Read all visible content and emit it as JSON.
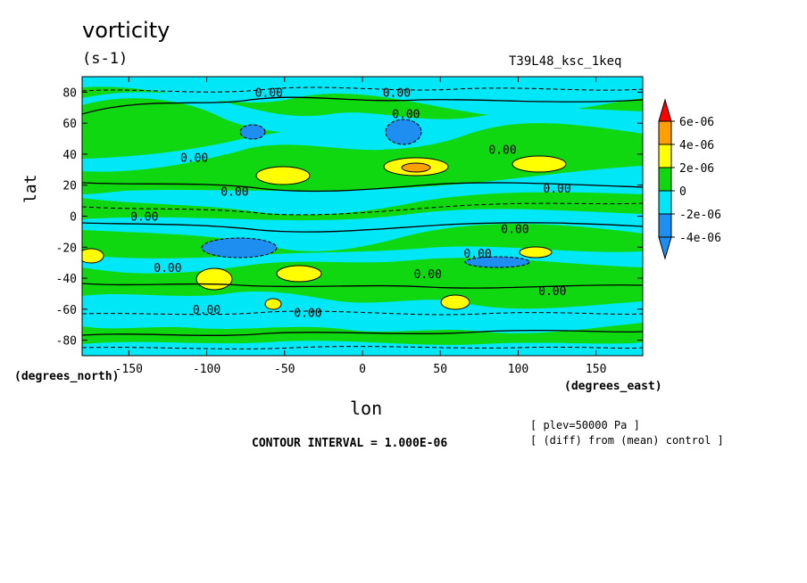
{
  "header": {
    "title": "vorticity",
    "units": "(s-1)",
    "run_name": "T39L48_ksc_1keq"
  },
  "axes": {
    "ylabel": "lat",
    "ylabel_units": "(degrees_north)",
    "xlabel": "lon",
    "xlabel_units": "(degrees_east)"
  },
  "footer": {
    "contour_interval": "CONTOUR INTERVAL = 1.000E-06",
    "note_plev": "[ plev=50000 Pa ]",
    "note_diff": "[ (diff) from (mean) control ]"
  },
  "colors": {
    "lt_neg4": "#1e8ef0",
    "neg4_neg2": "#1e8ef0",
    "neg2_0": "#00e8f8",
    "0_2": "#10d810",
    "2_4": "#ffff00",
    "4_6": "#ffa000",
    "gt_6": "#ff0000"
  },
  "chart_data": {
    "type": "heatmap",
    "title": "vorticity",
    "xlabel": "lon",
    "ylabel": "lat",
    "xlim": [
      -180,
      180
    ],
    "ylim": [
      -90,
      90
    ],
    "x_ticks": [
      -150,
      -100,
      -50,
      0,
      50,
      100,
      150
    ],
    "y_ticks": [
      80,
      60,
      40,
      20,
      0,
      -20,
      -40,
      -60,
      -80
    ],
    "contour_label": "0.00",
    "colorbar": {
      "levels": [
        "6e-06",
        "4e-06",
        "2e-06",
        "0",
        "-2e-06",
        "-4e-06"
      ],
      "bands": [
        {
          "range": "< -4e-06",
          "color": "#1e8ef0"
        },
        {
          "range": "-4e-06 to -2e-06",
          "color": "#1e8ef0"
        },
        {
          "range": "-2e-06 to 0",
          "color": "#00e8f8"
        },
        {
          "range": "0 to 2e-06",
          "color": "#10d810"
        },
        {
          "range": "2e-06 to 4e-06",
          "color": "#ffff00"
        },
        {
          "range": "4e-06 to 6e-06",
          "color": "#ffa000"
        },
        {
          "range": "> 6e-06",
          "color": "#ff0000"
        }
      ]
    },
    "features": [
      {
        "lon": -55,
        "lat": 25,
        "value": "2e-06 to 4e-06"
      },
      {
        "lon": 35,
        "lat": 30,
        "value": "4e-06 to 6e-06"
      },
      {
        "lon": 110,
        "lat": 32,
        "value": "2e-06 to 4e-06"
      },
      {
        "lon": 25,
        "lat": 52,
        "value": "< -4e-06"
      },
      {
        "lon": -70,
        "lat": 58,
        "value": "-4e-06 to -2e-06"
      },
      {
        "lon": -80,
        "lat": -22,
        "value": "-4e-06 to -2e-06"
      },
      {
        "lon": 80,
        "lat": -30,
        "value": "-4e-06 to -2e-06"
      },
      {
        "lon": -75,
        "lat": -40,
        "value": "2e-06 to 4e-06"
      },
      {
        "lon": -40,
        "lat": -35,
        "value": "2e-06 to 4e-06"
      },
      {
        "lon": 60,
        "lat": -55,
        "value": "2e-06 to 4e-06"
      },
      {
        "lon": 110,
        "lat": -25,
        "value": "2e-06 to 4e-06"
      },
      {
        "lon": -170,
        "lat": -25,
        "value": "2e-06 to 4e-06"
      },
      {
        "lon": -60,
        "lat": -57,
        "value": "2e-06 to 4e-06"
      }
    ],
    "contour_labels": [
      {
        "lon": -60,
        "lat": 80
      },
      {
        "lon": 22,
        "lat": 80
      },
      {
        "lon": 28,
        "lat": 66
      },
      {
        "lon": 90,
        "lat": 43
      },
      {
        "lon": -108,
        "lat": 38
      },
      {
        "lon": -82,
        "lat": 16
      },
      {
        "lon": 125,
        "lat": 18
      },
      {
        "lon": -140,
        "lat": 0
      },
      {
        "lon": 98,
        "lat": -8
      },
      {
        "lon": 74,
        "lat": -24
      },
      {
        "lon": -125,
        "lat": -33
      },
      {
        "lon": 42,
        "lat": -37
      },
      {
        "lon": 122,
        "lat": -48
      },
      {
        "lon": -100,
        "lat": -60
      },
      {
        "lon": -35,
        "lat": -62
      }
    ]
  }
}
